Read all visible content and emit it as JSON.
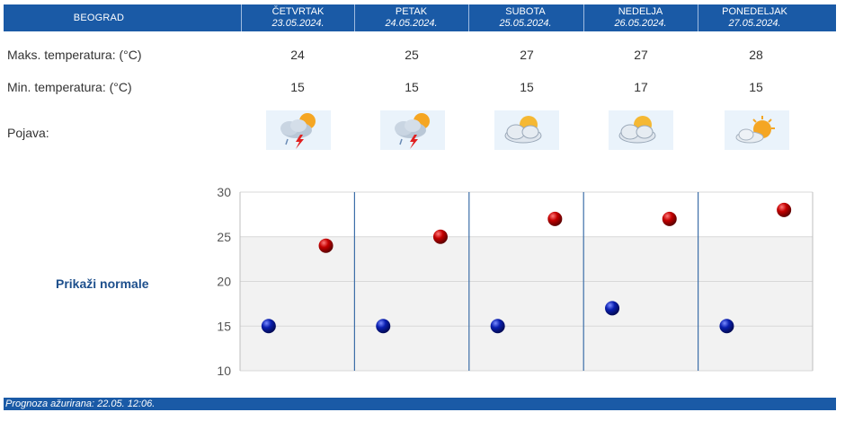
{
  "header": {
    "city": "BEOGRAD",
    "days": [
      {
        "name": "ČETVRTAK",
        "date": "23.05.2024."
      },
      {
        "name": "PETAK",
        "date": "24.05.2024."
      },
      {
        "name": "SUBOTA",
        "date": "25.05.2024."
      },
      {
        "name": "NEDELJA",
        "date": "26.05.2024."
      },
      {
        "name": "PONEDELJAK",
        "date": "27.05.2024."
      }
    ]
  },
  "rows": {
    "max_label": "Maks. temperatura: (°C)",
    "min_label": "Min. temperatura: (°C)",
    "weather_label": "Pojava:",
    "max_values": [
      "24",
      "25",
      "27",
      "27",
      "28"
    ],
    "min_values": [
      "15",
      "15",
      "15",
      "17",
      "15"
    ],
    "weather_icons": [
      "storm-cloud-sun-icon",
      "storm-cloud-sun-icon",
      "partly-cloudy-icon",
      "partly-cloudy-icon",
      "sun-cloud-icon"
    ]
  },
  "normals_link": "Prikaži normale",
  "footer": {
    "text": "Prognoza ažurirana:  22.05. 12:06."
  },
  "colors": {
    "header_bg": "#1a5aa6",
    "max_marker": "#c40000",
    "min_marker": "#0a1fb0",
    "band": "#f2f2f2"
  },
  "chart_data": {
    "type": "scatter",
    "title": "",
    "xlabel": "",
    "ylabel": "",
    "categories": [
      "23.05.2024.",
      "24.05.2024.",
      "25.05.2024.",
      "26.05.2024.",
      "27.05.2024."
    ],
    "ylim": [
      10,
      30
    ],
    "yticks": [
      10,
      15,
      20,
      25,
      30
    ],
    "grid": true,
    "series": [
      {
        "values": [
          24,
          25,
          27,
          27,
          28
        ],
        "color": "#c40000"
      },
      {
        "values": [
          15,
          15,
          15,
          17,
          15
        ],
        "color": "#0a1fb0"
      }
    ]
  }
}
